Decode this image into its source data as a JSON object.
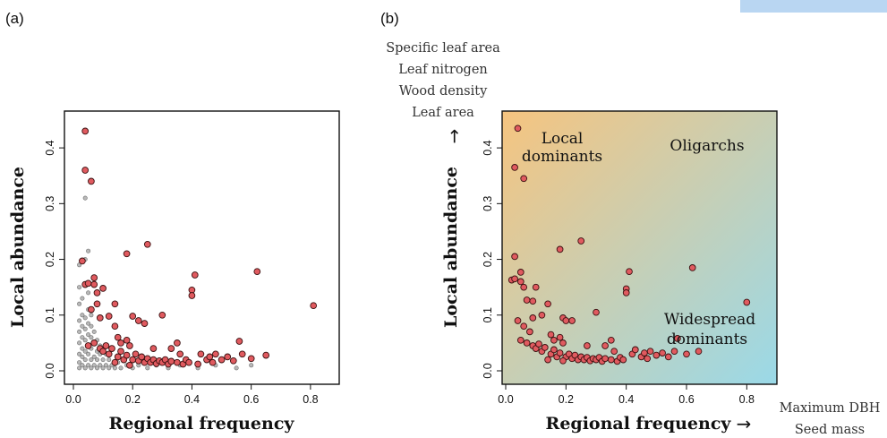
{
  "panels": {
    "a": {
      "label": "(a)",
      "xlabel": "Regional frequency",
      "ylabel": "Local abundance"
    },
    "b": {
      "label": "(b)",
      "xlabel": "Regional frequency",
      "ylabel": "Local abundance",
      "x_arrow": "→",
      "y_arrow": "→",
      "y_traits": [
        "Specific leaf area",
        "Leaf nitrogen",
        "Wood density",
        "Leaf area"
      ],
      "x_traits": [
        "Maximum DBH",
        "Seed mass"
      ],
      "regions": {
        "local_dominants": [
          "Local",
          "dominants"
        ],
        "oligarchs": "Oligarchs",
        "widespread_dominants": [
          "Widespread",
          "dominants"
        ]
      }
    }
  },
  "colors": {
    "focal_point": "#e05a5f",
    "point_edge": "#3a1010",
    "background_point": "#b8b8b8",
    "background_edge": "#6e6e6e",
    "gradient_top_left": "#f6c47f",
    "gradient_bottom_right": "#9ad9e8",
    "top_band": "#b9d6f2"
  },
  "chart_data": [
    {
      "type": "scatter",
      "panel": "a",
      "xlabel": "Regional frequency",
      "ylabel": "Local abundance",
      "xlim": [
        0,
        0.9
      ],
      "ylim": [
        0,
        0.45
      ],
      "xticks": [
        "0.0",
        "0.2",
        "0.4",
        "0.6",
        "0.8"
      ],
      "yticks": [
        "0.0",
        "0.1",
        "0.2",
        "0.3",
        "0.4"
      ],
      "series": [
        {
          "role": "background",
          "points": [
            [
              0.02,
              0.005
            ],
            [
              0.02,
              0.015
            ],
            [
              0.02,
              0.03
            ],
            [
              0.02,
              0.05
            ],
            [
              0.02,
              0.07
            ],
            [
              0.02,
              0.09
            ],
            [
              0.02,
              0.12
            ],
            [
              0.02,
              0.15
            ],
            [
              0.02,
              0.19
            ],
            [
              0.03,
              0.01
            ],
            [
              0.03,
              0.025
            ],
            [
              0.03,
              0.04
            ],
            [
              0.03,
              0.06
            ],
            [
              0.03,
              0.08
            ],
            [
              0.03,
              0.1
            ],
            [
              0.03,
              0.13
            ],
            [
              0.04,
              0.005
            ],
            [
              0.04,
              0.02
            ],
            [
              0.04,
              0.035
            ],
            [
              0.04,
              0.055
            ],
            [
              0.04,
              0.075
            ],
            [
              0.04,
              0.095
            ],
            [
              0.04,
              0.2
            ],
            [
              0.04,
              0.31
            ],
            [
              0.05,
              0.01
            ],
            [
              0.05,
              0.03
            ],
            [
              0.05,
              0.045
            ],
            [
              0.05,
              0.065
            ],
            [
              0.05,
              0.085
            ],
            [
              0.05,
              0.11
            ],
            [
              0.05,
              0.14
            ],
            [
              0.05,
              0.215
            ],
            [
              0.06,
              0.005
            ],
            [
              0.06,
              0.02
            ],
            [
              0.06,
              0.04
            ],
            [
              0.06,
              0.06
            ],
            [
              0.06,
              0.08
            ],
            [
              0.06,
              0.1
            ],
            [
              0.07,
              0.01
            ],
            [
              0.07,
              0.025
            ],
            [
              0.07,
              0.05
            ],
            [
              0.07,
              0.07
            ],
            [
              0.08,
              0.005
            ],
            [
              0.08,
              0.02
            ],
            [
              0.08,
              0.035
            ],
            [
              0.08,
              0.055
            ],
            [
              0.09,
              0.01
            ],
            [
              0.09,
              0.03
            ],
            [
              0.09,
              0.045
            ],
            [
              0.1,
              0.005
            ],
            [
              0.1,
              0.02
            ],
            [
              0.11,
              0.01
            ],
            [
              0.11,
              0.03
            ],
            [
              0.12,
              0.005
            ],
            [
              0.12,
              0.02
            ],
            [
              0.13,
              0.01
            ],
            [
              0.14,
              0.005
            ],
            [
              0.15,
              0.015
            ],
            [
              0.16,
              0.005
            ],
            [
              0.18,
              0.01
            ],
            [
              0.2,
              0.005
            ],
            [
              0.22,
              0.01
            ],
            [
              0.25,
              0.005
            ],
            [
              0.28,
              0.01
            ],
            [
              0.32,
              0.005
            ],
            [
              0.36,
              0.01
            ],
            [
              0.42,
              0.005
            ],
            [
              0.48,
              0.01
            ],
            [
              0.55,
              0.005
            ],
            [
              0.6,
              0.01
            ]
          ]
        },
        {
          "role": "focal",
          "points": [
            [
              0.04,
              0.43
            ],
            [
              0.04,
              0.36
            ],
            [
              0.06,
              0.34
            ],
            [
              0.25,
              0.227
            ],
            [
              0.18,
              0.21
            ],
            [
              0.03,
              0.197
            ],
            [
              0.04,
              0.155
            ],
            [
              0.05,
              0.157
            ],
            [
              0.07,
              0.167
            ],
            [
              0.07,
              0.155
            ],
            [
              0.08,
              0.14
            ],
            [
              0.1,
              0.148
            ],
            [
              0.14,
              0.12
            ],
            [
              0.12,
              0.098
            ],
            [
              0.09,
              0.095
            ],
            [
              0.06,
              0.11
            ],
            [
              0.08,
              0.12
            ],
            [
              0.14,
              0.08
            ],
            [
              0.2,
              0.098
            ],
            [
              0.22,
              0.09
            ],
            [
              0.24,
              0.085
            ],
            [
              0.3,
              0.1
            ],
            [
              0.41,
              0.172
            ],
            [
              0.4,
              0.145
            ],
            [
              0.4,
              0.135
            ],
            [
              0.62,
              0.178
            ],
            [
              0.81,
              0.117
            ],
            [
              0.56,
              0.053
            ],
            [
              0.05,
              0.045
            ],
            [
              0.07,
              0.05
            ],
            [
              0.09,
              0.04
            ],
            [
              0.1,
              0.035
            ],
            [
              0.11,
              0.045
            ],
            [
              0.12,
              0.03
            ],
            [
              0.13,
              0.04
            ],
            [
              0.15,
              0.025
            ],
            [
              0.16,
              0.035
            ],
            [
              0.17,
              0.02
            ],
            [
              0.18,
              0.028
            ],
            [
              0.2,
              0.02
            ],
            [
              0.21,
              0.03
            ],
            [
              0.22,
              0.018
            ],
            [
              0.23,
              0.025
            ],
            [
              0.24,
              0.015
            ],
            [
              0.25,
              0.022
            ],
            [
              0.26,
              0.015
            ],
            [
              0.27,
              0.02
            ],
            [
              0.28,
              0.013
            ],
            [
              0.29,
              0.018
            ],
            [
              0.3,
              0.015
            ],
            [
              0.31,
              0.02
            ],
            [
              0.32,
              0.012
            ],
            [
              0.33,
              0.017
            ],
            [
              0.35,
              0.015
            ],
            [
              0.37,
              0.012
            ],
            [
              0.38,
              0.02
            ],
            [
              0.39,
              0.015
            ],
            [
              0.42,
              0.012
            ],
            [
              0.43,
              0.03
            ],
            [
              0.45,
              0.02
            ],
            [
              0.46,
              0.025
            ],
            [
              0.47,
              0.015
            ],
            [
              0.48,
              0.03
            ],
            [
              0.5,
              0.02
            ],
            [
              0.52,
              0.025
            ],
            [
              0.54,
              0.018
            ],
            [
              0.57,
              0.03
            ],
            [
              0.6,
              0.022
            ],
            [
              0.65,
              0.028
            ],
            [
              0.15,
              0.06
            ],
            [
              0.16,
              0.05
            ],
            [
              0.18,
              0.055
            ],
            [
              0.19,
              0.045
            ],
            [
              0.27,
              0.04
            ],
            [
              0.33,
              0.04
            ],
            [
              0.35,
              0.05
            ],
            [
              0.14,
              0.015
            ],
            [
              0.19,
              0.01
            ],
            [
              0.36,
              0.03
            ]
          ]
        }
      ]
    },
    {
      "type": "scatter",
      "panel": "b",
      "xlabel": "Regional frequency",
      "ylabel": "Local abundance",
      "xlim": [
        0,
        0.9
      ],
      "ylim": [
        0,
        0.45
      ],
      "xticks": [
        "0.0",
        "0.2",
        "0.4",
        "0.6",
        "0.8"
      ],
      "yticks": [
        "0.0",
        "0.1",
        "0.2",
        "0.3",
        "0.4"
      ],
      "series": [
        {
          "role": "focal",
          "points": [
            [
              0.04,
              0.435
            ],
            [
              0.03,
              0.365
            ],
            [
              0.06,
              0.345
            ],
            [
              0.25,
              0.233
            ],
            [
              0.18,
              0.218
            ],
            [
              0.03,
              0.205
            ],
            [
              0.02,
              0.163
            ],
            [
              0.03,
              0.165
            ],
            [
              0.05,
              0.177
            ],
            [
              0.05,
              0.16
            ],
            [
              0.06,
              0.15
            ],
            [
              0.07,
              0.127
            ],
            [
              0.09,
              0.125
            ],
            [
              0.1,
              0.15
            ],
            [
              0.14,
              0.12
            ],
            [
              0.12,
              0.1
            ],
            [
              0.09,
              0.095
            ],
            [
              0.04,
              0.09
            ],
            [
              0.06,
              0.08
            ],
            [
              0.08,
              0.07
            ],
            [
              0.19,
              0.095
            ],
            [
              0.2,
              0.09
            ],
            [
              0.22,
              0.09
            ],
            [
              0.3,
              0.105
            ],
            [
              0.41,
              0.178
            ],
            [
              0.4,
              0.147
            ],
            [
              0.4,
              0.14
            ],
            [
              0.62,
              0.185
            ],
            [
              0.8,
              0.123
            ],
            [
              0.57,
              0.058
            ],
            [
              0.05,
              0.055
            ],
            [
              0.07,
              0.05
            ],
            [
              0.09,
              0.045
            ],
            [
              0.1,
              0.04
            ],
            [
              0.11,
              0.048
            ],
            [
              0.12,
              0.035
            ],
            [
              0.13,
              0.042
            ],
            [
              0.15,
              0.03
            ],
            [
              0.16,
              0.038
            ],
            [
              0.17,
              0.025
            ],
            [
              0.18,
              0.032
            ],
            [
              0.2,
              0.025
            ],
            [
              0.21,
              0.03
            ],
            [
              0.22,
              0.022
            ],
            [
              0.23,
              0.028
            ],
            [
              0.24,
              0.02
            ],
            [
              0.25,
              0.025
            ],
            [
              0.26,
              0.02
            ],
            [
              0.27,
              0.024
            ],
            [
              0.28,
              0.018
            ],
            [
              0.29,
              0.022
            ],
            [
              0.3,
              0.02
            ],
            [
              0.31,
              0.024
            ],
            [
              0.32,
              0.017
            ],
            [
              0.33,
              0.022
            ],
            [
              0.35,
              0.02
            ],
            [
              0.37,
              0.017
            ],
            [
              0.38,
              0.024
            ],
            [
              0.39,
              0.02
            ],
            [
              0.42,
              0.03
            ],
            [
              0.43,
              0.038
            ],
            [
              0.45,
              0.025
            ],
            [
              0.46,
              0.032
            ],
            [
              0.47,
              0.022
            ],
            [
              0.48,
              0.035
            ],
            [
              0.5,
              0.028
            ],
            [
              0.52,
              0.032
            ],
            [
              0.54,
              0.025
            ],
            [
              0.56,
              0.035
            ],
            [
              0.6,
              0.03
            ],
            [
              0.64,
              0.035
            ],
            [
              0.15,
              0.065
            ],
            [
              0.16,
              0.055
            ],
            [
              0.18,
              0.06
            ],
            [
              0.19,
              0.05
            ],
            [
              0.27,
              0.045
            ],
            [
              0.33,
              0.045
            ],
            [
              0.35,
              0.055
            ],
            [
              0.14,
              0.02
            ],
            [
              0.19,
              0.018
            ],
            [
              0.36,
              0.035
            ]
          ]
        }
      ]
    }
  ]
}
